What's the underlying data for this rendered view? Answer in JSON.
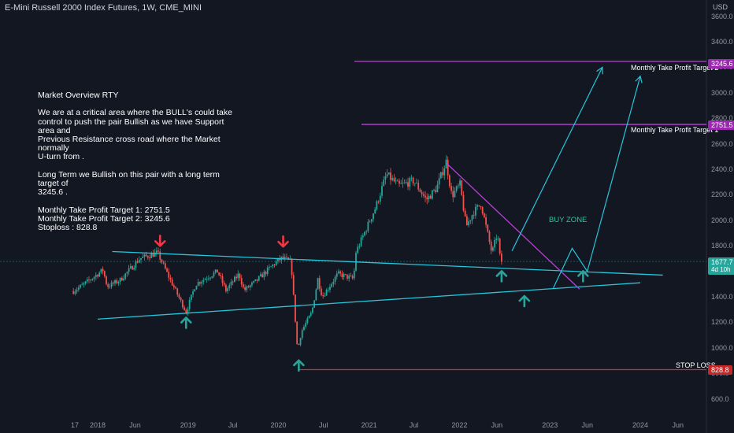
{
  "header": {
    "title": "E-Mini Russell 2000 Index Futures, 1W, CME_MINI"
  },
  "overview_lines": [
    "Market Overview RTY",
    "",
    "We are at a critical area where the BULL's could take",
    "control to push the pair Bullish as we have Support area and",
    "Previous Resistance cross road where the Market normally",
    "U-turn from .",
    "",
    "Long Term we Bullish on this pair with a long term target of",
    "3245.6 .",
    "",
    "Monthly Take Profit Target 1: 2751.5",
    "Monthly Take Profit Target 2: 3245.6",
    "Stoploss : 828.8"
  ],
  "axis": {
    "currency": "USD"
  },
  "annotations": {
    "target2": "Monthly Take Profit Target 2",
    "target1": "Monthly Take Profit Target 1",
    "stop": "STOP LOSS",
    "buy_zone": "BUY ZONE"
  },
  "price_tags": {
    "target2": {
      "value": "3245.6",
      "color": "#9c27b0"
    },
    "target1": {
      "value": "2751.5",
      "color": "#9c27b0"
    },
    "stop": {
      "value": "828.8",
      "color": "#c62828"
    },
    "last": {
      "value": "1677.7",
      "sub": "4d 10h",
      "color": "#26a69a"
    }
  },
  "colors": {
    "up": "#26a69a",
    "down": "#ef5350",
    "trendline": "#26c6da",
    "purple": "#ba3fd3",
    "arrow_up": "#26a69a",
    "arrow_down": "#f23645",
    "stop_line": "#d32f2f"
  },
  "chart_data": {
    "type": "candlestick",
    "title": "E-Mini Russell 2000 Index Futures, 1W, CME_MINI",
    "ylim": [
      560,
      3690
    ],
    "y_ticks": [
      600,
      800,
      1000,
      1200,
      1400,
      1600,
      1800,
      2000,
      2200,
      2400,
      2600,
      2800,
      3000,
      3200,
      3400,
      3600
    ],
    "x_ticks": [
      "17",
      "2018",
      "Jun",
      "2019",
      "Jul",
      "2020",
      "Jul",
      "2021",
      "Jul",
      "2022",
      "Jun",
      "2023",
      "Jun",
      "2024",
      "Jun"
    ],
    "x_tick_dates": [
      "2017-10-01",
      "2018-01-01",
      "2018-06-01",
      "2019-01-01",
      "2019-07-01",
      "2020-01-01",
      "2020-07-01",
      "2021-01-01",
      "2021-07-01",
      "2022-01-01",
      "2022-06-01",
      "2023-01-01",
      "2023-06-01",
      "2024-01-01",
      "2024-06-01"
    ],
    "price_path": [
      [
        "2017-09-25",
        1445
      ],
      [
        "2017-11-01",
        1490
      ],
      [
        "2018-01-22",
        1610
      ],
      [
        "2018-02-09",
        1480
      ],
      [
        "2018-04-01",
        1530
      ],
      [
        "2018-06-20",
        1700
      ],
      [
        "2018-08-31",
        1745
      ],
      [
        "2018-10-12",
        1570
      ],
      [
        "2018-12-24",
        1280
      ],
      [
        "2019-02-01",
        1500
      ],
      [
        "2019-04-30",
        1600
      ],
      [
        "2019-06-03",
        1450
      ],
      [
        "2019-07-26",
        1580
      ],
      [
        "2019-08-15",
        1450
      ],
      [
        "2019-10-01",
        1520
      ],
      [
        "2019-12-27",
        1680
      ],
      [
        "2020-01-17",
        1705
      ],
      [
        "2020-02-21",
        1670
      ],
      [
        "2020-03-18",
        975
      ],
      [
        "2020-04-03",
        1130
      ],
      [
        "2020-05-15",
        1280
      ],
      [
        "2020-06-08",
        1540
      ],
      [
        "2020-06-26",
        1400
      ],
      [
        "2020-08-28",
        1580
      ],
      [
        "2020-10-30",
        1540
      ],
      [
        "2020-11-09",
        1750
      ],
      [
        "2020-12-31",
        1980
      ],
      [
        "2021-01-29",
        2110
      ],
      [
        "2021-03-12",
        2360
      ],
      [
        "2021-04-30",
        2270
      ],
      [
        "2021-06-30",
        2310
      ],
      [
        "2021-08-20",
        2160
      ],
      [
        "2021-09-30",
        2250
      ],
      [
        "2021-11-08",
        2460
      ],
      [
        "2021-12-01",
        2190
      ],
      [
        "2022-01-03",
        2280
      ],
      [
        "2022-01-28",
        1950
      ],
      [
        "2022-02-25",
        2060
      ],
      [
        "2022-03-29",
        2130
      ],
      [
        "2022-05-12",
        1740
      ],
      [
        "2022-06-03",
        1900
      ],
      [
        "2022-06-16",
        1665
      ],
      [
        "2022-06-20",
        1678
      ]
    ],
    "levels": [
      {
        "label": "Monthly Take Profit Target 2",
        "value": 3245.6
      },
      {
        "label": "Monthly Take Profit Target 1",
        "value": 2751.5
      },
      {
        "label": "STOP LOSS",
        "value": 828.8
      }
    ],
    "last_price": 1677.7,
    "trendlines": [
      {
        "name": "upper",
        "from": [
          "2018-03-01",
          1755
        ],
        "to": [
          "2024-04-01",
          1570
        ]
      },
      {
        "name": "lower",
        "from": [
          "2018-01-01",
          1225
        ],
        "to": [
          "2024-01-01",
          1510
        ]
      },
      {
        "name": "down",
        "from": [
          "2021-11-08",
          2450
        ],
        "to": [
          "2023-05-01",
          1460
        ]
      }
    ],
    "projection_path": [
      [
        "2023-01-15",
        1470
      ],
      [
        "2023-04-01",
        1780
      ],
      [
        "2023-06-01",
        1600
      ],
      [
        "2024-01-01",
        3130
      ]
    ],
    "projection_path_2": [
      [
        "2022-08-01",
        1760
      ],
      [
        "2023-08-01",
        3200
      ]
    ],
    "arrows_up": [
      [
        "2018-12-24",
        1230
      ],
      [
        "2020-03-23",
        895
      ],
      [
        "2022-06-20",
        1595
      ],
      [
        "2022-09-20",
        1400
      ],
      [
        "2023-05-15",
        1595
      ]
    ],
    "arrows_down": [
      [
        "2018-09-10",
        1805
      ],
      [
        "2020-01-20",
        1800
      ]
    ]
  }
}
